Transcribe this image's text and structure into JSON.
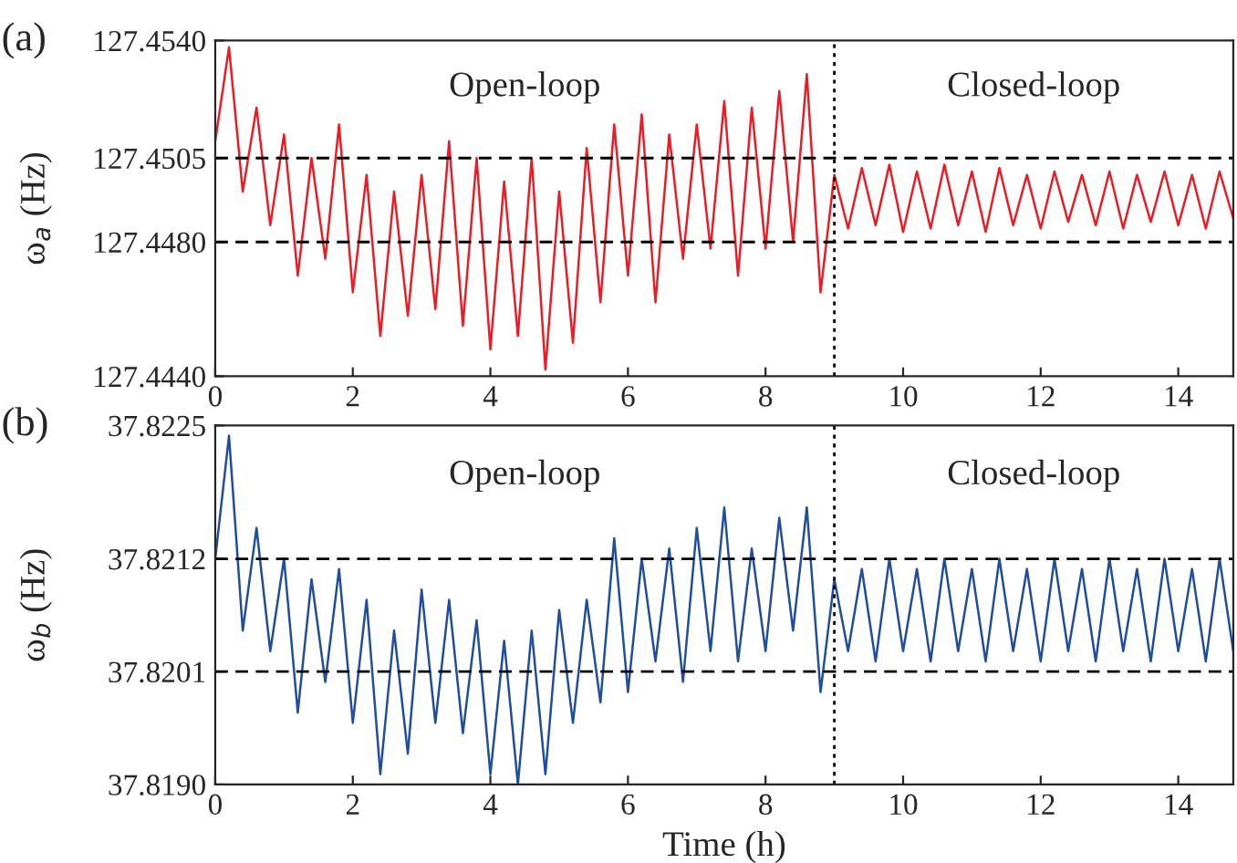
{
  "chart_data": [
    {
      "type": "line",
      "title": "(a)",
      "ylabel": "ω$_{a}$ (Hz)",
      "x": [
        0,
        0.2,
        0.4,
        0.6,
        0.8,
        1.0,
        1.2,
        1.4,
        1.6,
        1.8,
        2.0,
        2.2,
        2.4,
        2.6,
        2.8,
        3.0,
        3.2,
        3.4,
        3.6,
        3.8,
        4.0,
        4.2,
        4.4,
        4.6,
        4.8,
        5.0,
        5.2,
        5.4,
        5.6,
        5.8,
        6.0,
        6.2,
        6.4,
        6.6,
        6.8,
        7.0,
        7.2,
        7.4,
        7.6,
        7.8,
        8.0,
        8.2,
        8.4,
        8.6,
        8.8,
        9.0,
        9.2,
        9.4,
        9.6,
        9.8,
        10.0,
        10.2,
        10.4,
        10.6,
        10.8,
        11.0,
        11.2,
        11.4,
        11.6,
        11.8,
        12.0,
        12.2,
        12.4,
        12.6,
        12.8,
        13.0,
        13.2,
        13.4,
        13.6,
        13.8,
        14.0,
        14.2,
        14.4,
        14.6,
        14.8
      ],
      "series": [
        {
          "color": "#ed1c24",
          "values": [
            127.451,
            127.4538,
            127.4495,
            127.452,
            127.4485,
            127.4512,
            127.447,
            127.4505,
            127.4475,
            127.4515,
            127.4465,
            127.45,
            127.4452,
            127.4495,
            127.4458,
            127.45,
            127.446,
            127.451,
            127.4455,
            127.4505,
            127.4448,
            127.4498,
            127.4452,
            127.4505,
            127.4442,
            127.4495,
            127.445,
            127.4508,
            127.4462,
            127.4515,
            127.447,
            127.4518,
            127.4462,
            127.4512,
            127.4475,
            127.4515,
            127.4478,
            127.4522,
            127.447,
            127.452,
            127.4478,
            127.4525,
            127.448,
            127.453,
            127.4465,
            127.45,
            127.4484,
            127.4502,
            127.4485,
            127.4503,
            127.4483,
            127.4501,
            127.4484,
            127.4503,
            127.4485,
            127.4501,
            127.4483,
            127.4502,
            127.4485,
            127.45,
            127.4484,
            127.4501,
            127.4486,
            127.45,
            127.4485,
            127.4501,
            127.4484,
            127.45,
            127.4486,
            127.4501,
            127.4485,
            127.45,
            127.4484,
            127.4501,
            127.4487
          ]
        }
      ],
      "xlim": [
        0,
        14.8
      ],
      "xticks": [
        0,
        2,
        4,
        6,
        8,
        10,
        12,
        14
      ],
      "ylim": [
        127.444,
        127.454
      ],
      "yticks": [
        {
          "value": 127.444,
          "label": "127.4440"
        },
        {
          "value": 127.448,
          "label": "127.4480"
        },
        {
          "value": 127.4505,
          "label": "127.4505"
        },
        {
          "value": 127.454,
          "label": "127.4540"
        }
      ],
      "ref_lines": [
        {
          "axis": "y",
          "value": 127.4505,
          "color": "#000000",
          "line_style": "dashed"
        },
        {
          "axis": "y",
          "value": 127.448,
          "color": "#000000",
          "line_style": "dashed"
        },
        {
          "axis": "x",
          "value": 9,
          "color": "#000000",
          "line_style": "dotted"
        }
      ],
      "annotations": [
        "Open-loop",
        "Closed-loop"
      ],
      "grid": false,
      "legend": false
    },
    {
      "type": "line",
      "title": "(b)",
      "ylabel": "ω$_{b}$ (Hz)",
      "xlabel": "Time (h)",
      "x": [
        0,
        0.2,
        0.4,
        0.6,
        0.8,
        1.0,
        1.2,
        1.4,
        1.6,
        1.8,
        2.0,
        2.2,
        2.4,
        2.6,
        2.8,
        3.0,
        3.2,
        3.4,
        3.6,
        3.8,
        4.0,
        4.2,
        4.4,
        4.6,
        4.8,
        5.0,
        5.2,
        5.4,
        5.6,
        5.8,
        6.0,
        6.2,
        6.4,
        6.6,
        6.8,
        7.0,
        7.2,
        7.4,
        7.6,
        7.8,
        8.0,
        8.2,
        8.4,
        8.6,
        8.8,
        9.0,
        9.2,
        9.4,
        9.6,
        9.8,
        10.0,
        10.2,
        10.4,
        10.6,
        10.8,
        11.0,
        11.2,
        11.4,
        11.6,
        11.8,
        12.0,
        12.2,
        12.4,
        12.6,
        12.8,
        13.0,
        13.2,
        13.4,
        13.6,
        13.8,
        14.0,
        14.2,
        14.4,
        14.6,
        14.8
      ],
      "series": [
        {
          "color": "#1f4e9f",
          "values": [
            37.8212,
            37.8224,
            37.8205,
            37.8215,
            37.8203,
            37.8212,
            37.8197,
            37.821,
            37.82,
            37.8211,
            37.8196,
            37.8208,
            37.8191,
            37.8205,
            37.8193,
            37.8209,
            37.8196,
            37.8208,
            37.8195,
            37.8206,
            37.8191,
            37.8204,
            37.819,
            37.8205,
            37.8191,
            37.8207,
            37.8196,
            37.8208,
            37.8198,
            37.8214,
            37.8199,
            37.8212,
            37.8202,
            37.8213,
            37.82,
            37.8215,
            37.8203,
            37.8217,
            37.8202,
            37.8213,
            37.8203,
            37.8216,
            37.8205,
            37.8217,
            37.8199,
            37.821,
            37.8203,
            37.8211,
            37.8202,
            37.8212,
            37.8203,
            37.8211,
            37.8202,
            37.8212,
            37.8203,
            37.8211,
            37.8202,
            37.8212,
            37.8203,
            37.8211,
            37.8202,
            37.8212,
            37.8203,
            37.8211,
            37.8202,
            37.8212,
            37.8203,
            37.8211,
            37.8202,
            37.8212,
            37.8203,
            37.8211,
            37.8202,
            37.8212,
            37.8203
          ]
        }
      ],
      "xlim": [
        0,
        14.8
      ],
      "xticks": [
        0,
        2,
        4,
        6,
        8,
        10,
        12,
        14
      ],
      "ylim": [
        37.819,
        37.8225
      ],
      "yticks": [
        {
          "value": 37.819,
          "label": "37.8190"
        },
        {
          "value": 37.8201,
          "label": "37.8201"
        },
        {
          "value": 37.8212,
          "label": "37.8212"
        },
        {
          "value": 37.8225,
          "label": "37.8225"
        }
      ],
      "ref_lines": [
        {
          "axis": "y",
          "value": 37.8212,
          "color": "#000000",
          "line_style": "dashed"
        },
        {
          "axis": "y",
          "value": 37.8201,
          "color": "#000000",
          "line_style": "dashed"
        },
        {
          "axis": "x",
          "value": 9,
          "color": "#000000",
          "line_style": "dotted"
        }
      ],
      "annotations": [
        "Open-loop",
        "Closed-loop"
      ],
      "grid": false,
      "legend": false
    }
  ]
}
